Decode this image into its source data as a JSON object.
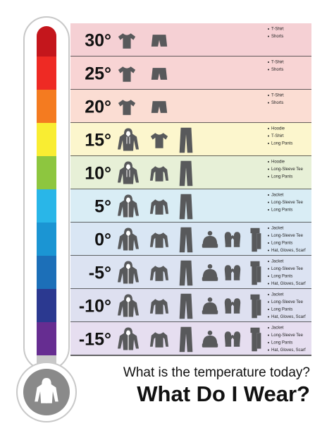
{
  "rows": [
    {
      "temperature": "30°",
      "items": [
        "T-Shirt",
        "Shorts"
      ]
    },
    {
      "temperature": "25°",
      "items": [
        "T-Shirt",
        "Shorts"
      ]
    },
    {
      "temperature": "20°",
      "items": [
        "T-Shirt",
        "Shorts"
      ]
    },
    {
      "temperature": "15°",
      "items": [
        "Hoodie",
        "T-Shirt",
        "Long Pants"
      ]
    },
    {
      "temperature": "10°",
      "items": [
        "Hoodie",
        "Long-Sleeve Tee",
        "Long Pants"
      ]
    },
    {
      "temperature": "5°",
      "items": [
        "Jacket",
        "Long-Sleeve Tee",
        "Long Pants"
      ]
    },
    {
      "temperature": "0°",
      "items": [
        "Jacket",
        "Long-Sleeve Tee",
        "Long Pants",
        "Hat, Gloves, Scarf"
      ]
    },
    {
      "temperature": "-5°",
      "items": [
        "Jacket",
        "Long-Sleeve Tee",
        "Long Pants",
        "Hat, Gloves, Scarf"
      ]
    },
    {
      "temperature": "-10°",
      "items": [
        "Jacket",
        "Long-Sleeve Tee",
        "Long Pants",
        "Hat, Gloves, Scarf"
      ]
    },
    {
      "temperature": "-15°",
      "items": [
        "Jacket",
        "Long-Sleeve Tee",
        "Long Pants",
        "Hat, Gloves, Scarf"
      ]
    }
  ],
  "footer": {
    "question": "What is the temperature today?",
    "title": "What Do I Wear?"
  }
}
